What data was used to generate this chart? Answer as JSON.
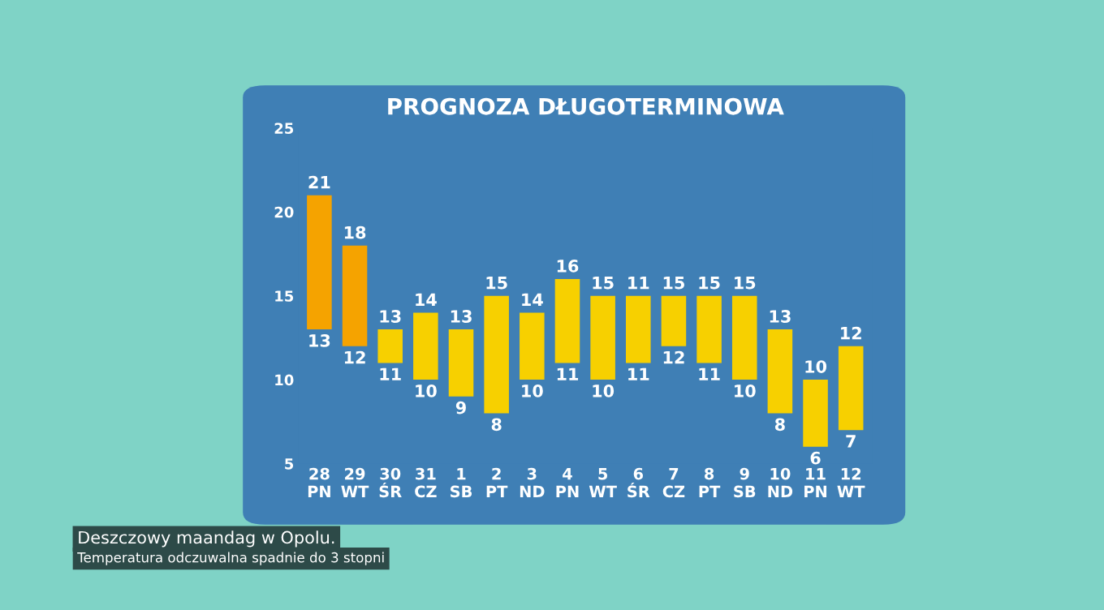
{
  "chart_data": {
    "type": "bar",
    "title": "PROGNOZA DŁUGOTERMINOWA",
    "categories": [
      "28\nPN",
      "29\nWT",
      "30\nŚR",
      "31\nCZ",
      "1\nSB",
      "2\nPT",
      "3\nND",
      "4\nPN",
      "5\nWT",
      "6\nŚR",
      "7\nCZ",
      "8\nPT",
      "9\nSB",
      "10\nND",
      "11\nPN",
      "12\nWT"
    ],
    "base": [
      13,
      12,
      11,
      10,
      9,
      8,
      10,
      11,
      10,
      11,
      12,
      11,
      10,
      8,
      6,
      7
    ],
    "values": [
      8,
      6,
      2,
      4,
      4,
      7,
      4,
      5,
      5,
      4,
      3,
      4,
      5,
      5,
      4,
      5
    ],
    "value_labels": [
      "21",
      "18",
      "13",
      "14",
      "13",
      "15",
      "14",
      "16",
      "15",
      null,
      "15",
      "15",
      "15",
      "13",
      "10",
      "12"
    ],
    "colors": [
      "#f5a300",
      "#f5a300",
      "#f7d000",
      "#f7d000",
      "#f7d000",
      "#f7d000",
      "#f7d000",
      "#f7d000",
      "#f7d000",
      "#f7d000",
      "#f7d000",
      "#f7d000",
      "#f7d000",
      "#f7d000",
      "#f7d000",
      "#f7d000"
    ],
    "ylim": [
      5,
      25
    ],
    "yticks": [
      5,
      10,
      15,
      20,
      25
    ],
    "grid": false,
    "annotations": [
      {
        "text": "13",
        "x": "28\nPN",
        "y": 13
      },
      {
        "text": "12",
        "x": "29\nWT",
        "y": 12
      },
      {
        "text": "11",
        "x": "30\nŚR",
        "y": 11
      },
      {
        "text": "10",
        "x": "31\nCZ",
        "y": 10
      },
      {
        "text": "9",
        "x": "1\nSB",
        "y": 9
      },
      {
        "text": "8",
        "x": "2\nPT",
        "y": 8
      },
      {
        "text": "10",
        "x": "3\nND",
        "y": 10
      },
      {
        "text": "11",
        "x": "4\nPN",
        "y": 11
      },
      {
        "text": "10",
        "x": "5\nWT",
        "y": 10
      },
      {
        "text": "11",
        "x": "6\nŚR",
        "y": 15
      },
      {
        "text": "11",
        "x": "6\nŚR",
        "y": 11
      },
      {
        "text": "12",
        "x": "7\nCZ",
        "y": 12
      },
      {
        "text": "11",
        "x": "8\nPT",
        "y": 11
      },
      {
        "text": "10",
        "x": "9\nSB",
        "y": 10
      },
      {
        "text": "8",
        "x": "10\nND",
        "y": 8
      },
      {
        "text": "6",
        "x": "11\nPN",
        "y": 6
      },
      {
        "text": "7",
        "x": "12\nWT",
        "y": 7
      },
      "Deszczowy maandag w Opolu.",
      "Temperatura odczuwalna spadnie do 3 stopni"
    ]
  }
}
